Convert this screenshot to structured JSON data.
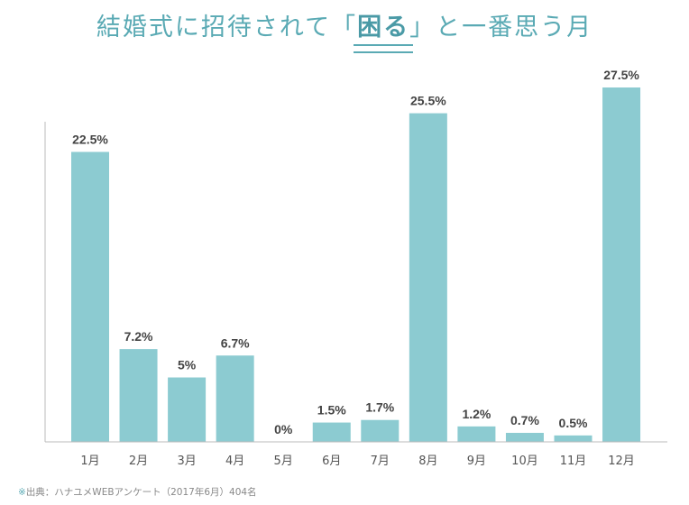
{
  "chart_data": {
    "type": "bar",
    "title_parts": {
      "before": "結婚式に招待されて「",
      "emphasis": "困る",
      "after": "」と一番思う月"
    },
    "categories": [
      "1月",
      "2月",
      "3月",
      "4月",
      "5月",
      "6月",
      "7月",
      "8月",
      "9月",
      "10月",
      "11月",
      "12月"
    ],
    "values": [
      22.5,
      7.2,
      5,
      6.7,
      0,
      1.5,
      1.7,
      25.5,
      1.2,
      0.7,
      0.5,
      27.5
    ],
    "data_labels": [
      "22.5%",
      "7.2%",
      "5%",
      "6.7%",
      "0%",
      "1.5%",
      "1.7%",
      "25.5%",
      "1.2%",
      "0.7%",
      "0.5%",
      "27.5%"
    ],
    "ylim": [
      0,
      27.5
    ],
    "grid": false,
    "bar_color": "#8ccbd1",
    "title_color": "#5aaab4"
  },
  "source": {
    "mark": "※",
    "text": "出典：ハナユメWEBアンケート（2017年6月）404名"
  }
}
